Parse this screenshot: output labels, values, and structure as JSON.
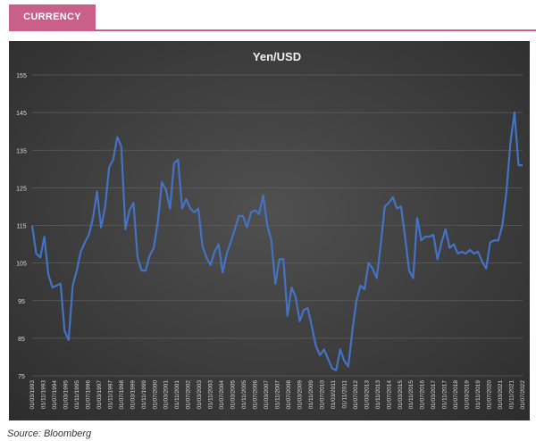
{
  "header": {
    "section_tab": "CURRENCY"
  },
  "footer": {
    "source": "Source: Bloomberg"
  },
  "colors": {
    "accent": "#c8608a",
    "line": "#4472c4",
    "plot_bg": "#3a3a3a"
  },
  "chart_data": {
    "type": "line",
    "title": "Yen/USD",
    "ylim": [
      75,
      155
    ],
    "yticks": [
      75,
      85,
      95,
      105,
      115,
      125,
      135,
      145,
      155
    ],
    "grid": true,
    "xlabels": [
      "01/03/1993",
      "01/11/1993",
      "01/07/1994",
      "01/03/1995",
      "01/11/1995",
      "01/07/1996",
      "01/03/1997",
      "01/11/1997",
      "01/07/1998",
      "01/03/1999",
      "01/11/1999",
      "01/07/2000",
      "01/03/2001",
      "01/11/2001",
      "01/07/2002",
      "01/03/2003",
      "01/11/2003",
      "01/07/2004",
      "01/03/2005",
      "01/11/2005",
      "01/07/2006",
      "01/03/2007",
      "01/11/2007",
      "01/07/2008",
      "01/03/2009",
      "01/11/2009",
      "01/07/2010",
      "01/03/2011",
      "01/11/2011",
      "01/07/2012",
      "01/03/2013",
      "01/11/2013",
      "01/07/2014",
      "01/03/2015",
      "01/11/2015",
      "01/07/2016",
      "01/03/2017",
      "01/11/2017",
      "01/07/2018",
      "01/03/2019",
      "01/11/2019",
      "01/07/2020",
      "01/03/2021",
      "01/11/2021",
      "01/07/2022"
    ],
    "series": [
      {
        "values": [
          115,
          107.5,
          106.5,
          112,
          102,
          98.5,
          99,
          99.5,
          87,
          84.5,
          99,
          103,
          108,
          110.5,
          112.5,
          117,
          124,
          114.5,
          120,
          130.5,
          132.5,
          138.5,
          136,
          114,
          119,
          121,
          106.5,
          103,
          103,
          107,
          109,
          116,
          126.5,
          124.5,
          119.5,
          131.5,
          132.5,
          119.5,
          122,
          119.5,
          118.5,
          119.5,
          109.5,
          106.5,
          104.5,
          108,
          110,
          102.5,
          107.5,
          110.5,
          114,
          117.5,
          117.5,
          114.5,
          118.5,
          119,
          118,
          123,
          115,
          111,
          99.5,
          106,
          106,
          91,
          98.5,
          96,
          89.5,
          92.5,
          93,
          88,
          83,
          80.5,
          82,
          79.5,
          77,
          76.5,
          82,
          79,
          77.5,
          87,
          95,
          99,
          98,
          105,
          103.5,
          101,
          110,
          120,
          121,
          122.5,
          119.5,
          120,
          112,
          103,
          101,
          117,
          111,
          112,
          112,
          112.5,
          106,
          110.5,
          114,
          109,
          110,
          107.5,
          108,
          107.5,
          108.5,
          107.5,
          108,
          105.5,
          103.5,
          110.5,
          111,
          111,
          115,
          124,
          137,
          145,
          131,
          131
        ]
      }
    ]
  }
}
